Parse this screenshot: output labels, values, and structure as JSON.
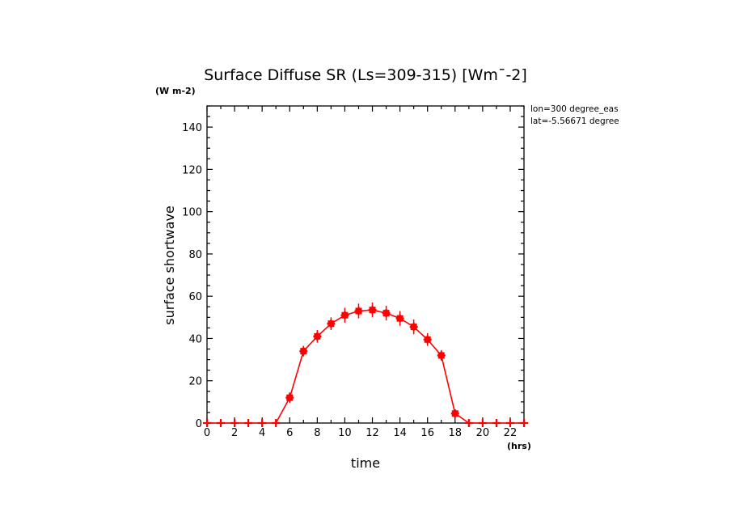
{
  "chart_data": {
    "type": "line",
    "title": "Surface Diffuse SR (Ls=309-315) [Wm¯-2]",
    "xlabel": "time",
    "ylabel": "surface shortwave",
    "x_unit": "(hrs)",
    "y_unit": "(W m-2)",
    "xlim": [
      0,
      23
    ],
    "ylim": [
      0,
      150
    ],
    "x_ticks": [
      0,
      2,
      4,
      6,
      8,
      10,
      12,
      14,
      16,
      18,
      20,
      22
    ],
    "y_ticks": [
      0,
      20,
      40,
      60,
      80,
      100,
      120,
      140
    ],
    "annotations": [
      "lon=300 degree_eas",
      "lat=-5.56671 degree"
    ],
    "series": [
      {
        "name": "surface diffuse SR",
        "color": "#ff0000",
        "x": [
          0,
          1,
          2,
          3,
          4,
          5,
          6,
          7,
          8,
          9,
          10,
          11,
          12,
          13,
          14,
          15,
          16,
          17,
          18,
          19,
          20,
          21,
          22,
          23
        ],
        "values": [
          0,
          0,
          0,
          0,
          0,
          0,
          12,
          34,
          41,
          47,
          51,
          53,
          53.5,
          52,
          49.5,
          45.5,
          39.5,
          32,
          4.5,
          0,
          0,
          0,
          0,
          0
        ],
        "error": [
          0,
          0,
          0,
          0,
          0,
          0,
          2.5,
          2.5,
          3,
          3,
          3.5,
          3.5,
          3.5,
          3.5,
          3.5,
          3.5,
          3,
          2.5,
          2,
          0,
          0,
          0,
          0,
          0
        ]
      }
    ]
  }
}
